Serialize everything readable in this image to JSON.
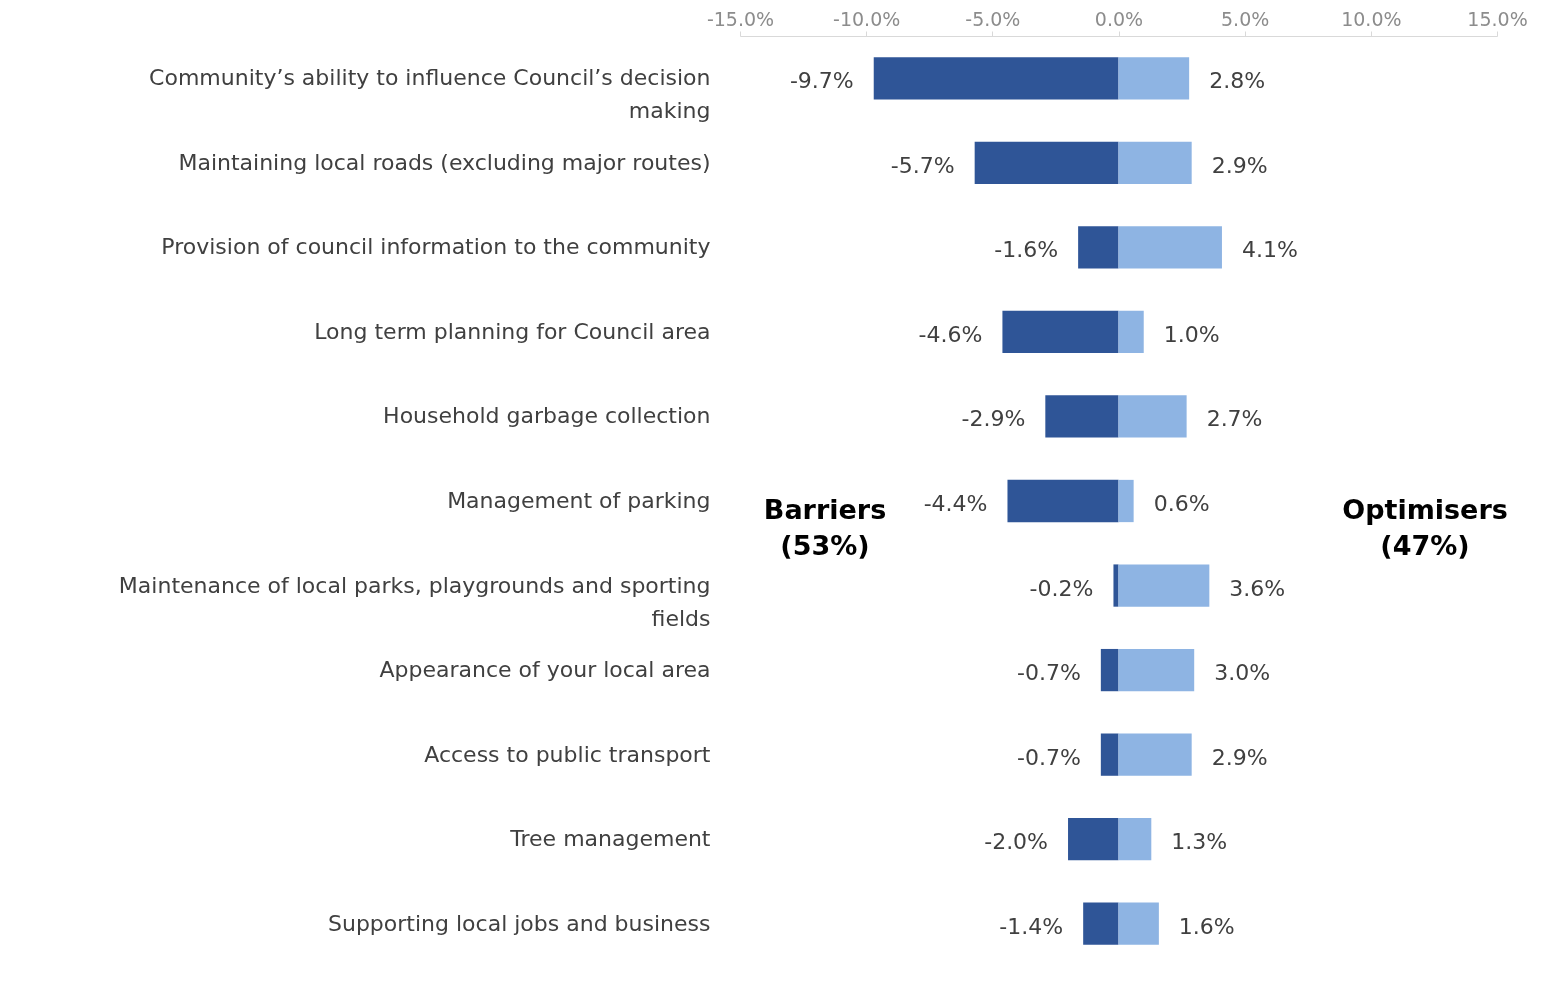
{
  "chart_data": {
    "type": "bar",
    "orientation": "horizontal",
    "stacked": true,
    "categories": [
      "Community’s ability to influence Council’s decision making",
      "Maintaining local roads (excluding major routes)",
      "Provision of council information to the community",
      "Long term planning for Council area",
      "Household garbage collection",
      "Management of parking",
      "Maintenance of local parks, playgrounds and sporting fields",
      "Appearance of your local area",
      "Access to public transport",
      "Tree management",
      "Supporting local jobs and business"
    ],
    "series": [
      {
        "color": "#2f5597",
        "values": [
          -9.7,
          -5.7,
          -1.6,
          -4.6,
          -2.9,
          -4.4,
          -0.2,
          -0.7,
          -0.7,
          -2.0,
          -1.4
        ],
        "value_labels": [
          "-9.7%",
          "-5.7%",
          "-1.6%",
          "-4.6%",
          "-2.9%",
          "-4.4%",
          "-0.2%",
          "-0.7%",
          "-0.7%",
          "-2.0%",
          "-1.4%"
        ]
      },
      {
        "color": "#8eb4e3",
        "values": [
          2.8,
          2.9,
          4.1,
          1.0,
          2.7,
          0.6,
          3.6,
          3.0,
          2.9,
          1.3,
          1.6
        ],
        "value_labels": [
          "2.8%",
          "2.9%",
          "4.1%",
          "1.0%",
          "2.7%",
          "0.6%",
          "3.6%",
          "3.0%",
          "2.9%",
          "1.3%",
          "1.6%"
        ]
      }
    ],
    "xlim": [
      -15,
      15
    ],
    "xticks": [
      {
        "value": -15,
        "label": "-15.0%"
      },
      {
        "value": -10,
        "label": "-10.0%"
      },
      {
        "value": -5,
        "label": "-5.0%"
      },
      {
        "value": 0,
        "label": "0.0%"
      },
      {
        "value": 5,
        "label": "5.0%"
      },
      {
        "value": 10,
        "label": "10.0%"
      },
      {
        "value": 15,
        "label": "15.0%"
      }
    ],
    "grid": false,
    "annotations": [
      "Barriers (53%)",
      "Optimisers (47%)"
    ]
  }
}
